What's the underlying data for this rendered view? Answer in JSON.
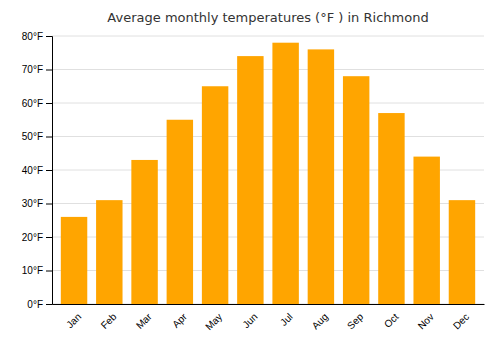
{
  "chart_data": {
    "type": "bar",
    "title": "Average monthly temperatures (°F ) in Richmond",
    "categories": [
      "Jan",
      "Feb",
      "Mar",
      "Apr",
      "May",
      "Jun",
      "Jul",
      "Aug",
      "Sep",
      "Oct",
      "Nov",
      "Dec"
    ],
    "values": [
      26,
      31,
      43,
      55,
      65,
      74,
      78,
      76,
      68,
      57,
      44,
      31
    ],
    "color": "#FFA500",
    "ylim": [
      0,
      80
    ],
    "yticks": [
      {
        "value": 0,
        "label": "0°F"
      },
      {
        "value": 10,
        "label": "10°F"
      },
      {
        "value": 20,
        "label": "20°F"
      },
      {
        "value": 30,
        "label": "30°F"
      },
      {
        "value": 40,
        "label": "40°F"
      },
      {
        "value": 50,
        "label": "50°F"
      },
      {
        "value": 60,
        "label": "60°F"
      },
      {
        "value": 70,
        "label": "70°F"
      },
      {
        "value": 80,
        "label": "80°F"
      }
    ],
    "grid": true
  }
}
